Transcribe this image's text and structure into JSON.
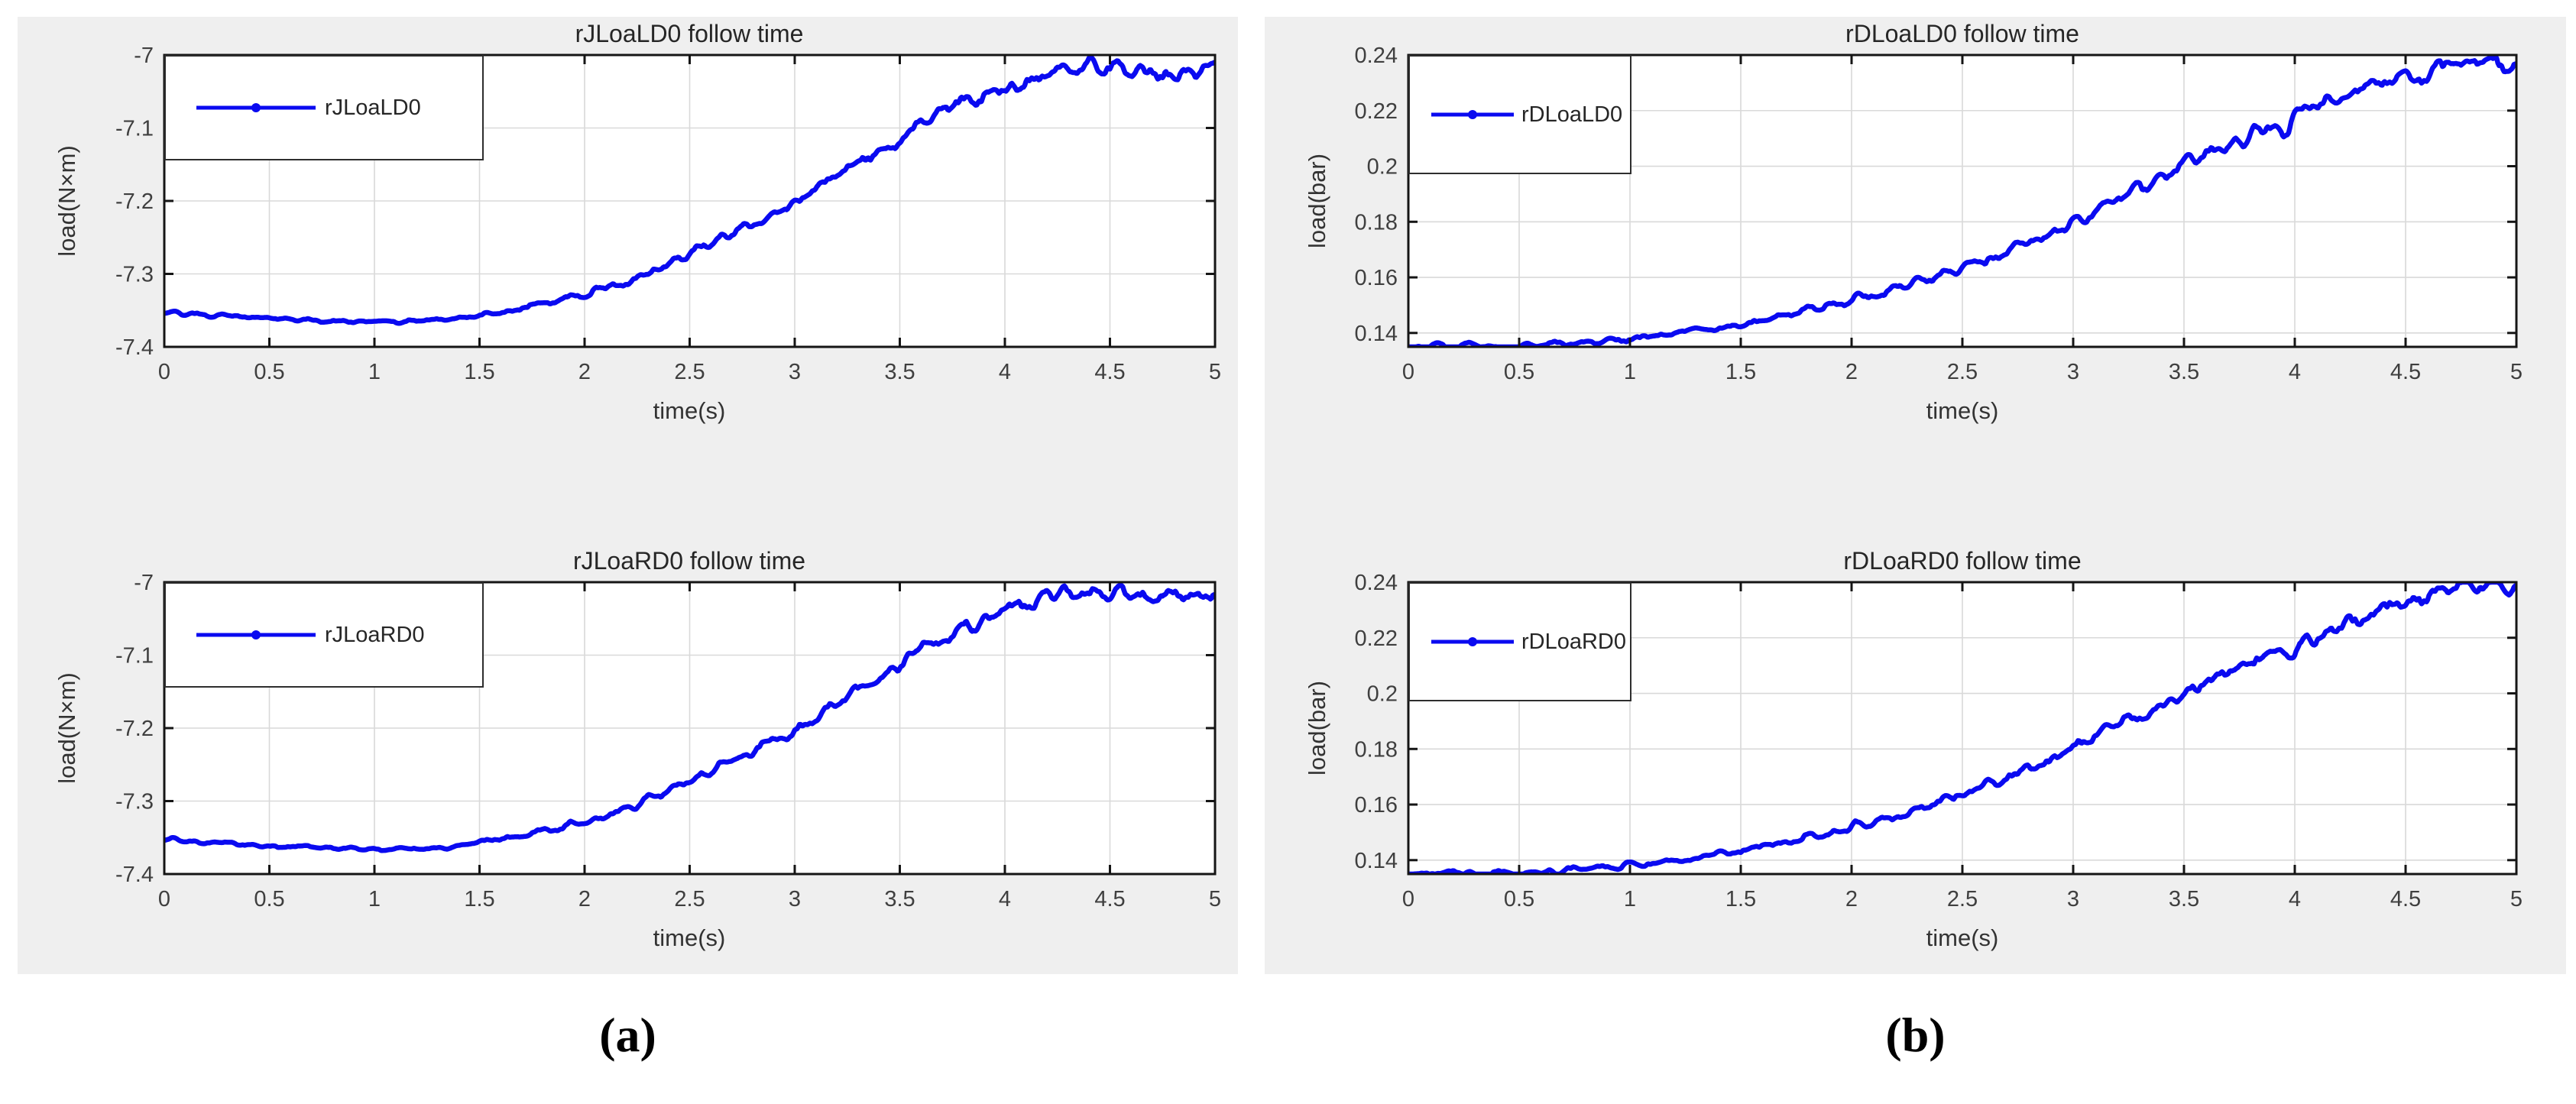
{
  "captions": {
    "a": "(a)",
    "b": "(b)"
  },
  "colors": {
    "line": "#0a0af0",
    "panel_bg": "#efefef",
    "plot_bg": "#ffffff",
    "grid": "#d9d9d9",
    "axis": "#151515",
    "tick_label": "#3f3f3f",
    "title": "#262626"
  },
  "chart_data": [
    {
      "type": "line",
      "title": "rJLoaLD0 follow time",
      "xlabel": "time(s)",
      "ylabel": "load(N×m)",
      "legend": "rJLoaLD0",
      "line_color": "#0a0af0",
      "xlim": [
        0,
        5
      ],
      "ylim": [
        -7.4,
        -7.0
      ],
      "xtick_values": [
        0,
        0.5,
        1,
        1.5,
        2,
        2.5,
        3,
        3.5,
        4,
        4.5,
        5
      ],
      "xtick_labels": [
        "0",
        "0.5",
        "1",
        "1.5",
        "2",
        "2.5",
        "3",
        "3.5",
        "4",
        "4.5",
        "5"
      ],
      "ytick_values": [
        -7.4,
        -7.3,
        -7.2,
        -7.1,
        -7.0
      ],
      "ytick_labels": [
        "-7.4",
        "-7.3",
        "-7.2",
        "-7.1",
        "-7"
      ],
      "grid": true,
      "legend_position": "top-left",
      "x": [
        0,
        0.25,
        0.5,
        0.75,
        1,
        1.25,
        1.5,
        1.75,
        2,
        2.25,
        2.5,
        2.75,
        3,
        3.25,
        3.5,
        3.75,
        4,
        4.25,
        4.5,
        4.75,
        5
      ],
      "y": [
        -7.352,
        -7.357,
        -7.361,
        -7.364,
        -7.366,
        -7.365,
        -7.358,
        -7.345,
        -7.327,
        -7.305,
        -7.272,
        -7.238,
        -7.202,
        -7.158,
        -7.112,
        -7.072,
        -7.044,
        -7.018,
        -7.016,
        -7.022,
        -7.019
      ],
      "noise_amplitude": {
        "t": [
          0,
          1.3,
          2.2,
          3.2,
          4,
          5
        ],
        "a": [
          0.002,
          0.002,
          0.005,
          0.0075,
          0.011,
          0.011
        ]
      },
      "ripple_period": 0.125
    },
    {
      "type": "line",
      "title": "rJLoaRD0 follow time",
      "xlabel": "time(s)",
      "ylabel": "load(N×m)",
      "legend": "rJLoaRD0",
      "line_color": "#0a0af0",
      "xlim": [
        0,
        5
      ],
      "ylim": [
        -7.4,
        -7.0
      ],
      "xtick_values": [
        0,
        0.5,
        1,
        1.5,
        2,
        2.5,
        3,
        3.5,
        4,
        4.5,
        5
      ],
      "xtick_labels": [
        "0",
        "0.5",
        "1",
        "1.5",
        "2",
        "2.5",
        "3",
        "3.5",
        "4",
        "4.5",
        "5"
      ],
      "ytick_values": [
        -7.4,
        -7.3,
        -7.2,
        -7.1,
        -7.0
      ],
      "ytick_labels": [
        "-7.4",
        "-7.3",
        "-7.2",
        "-7.1",
        "-7"
      ],
      "grid": true,
      "legend_position": "top-left",
      "x": [
        0,
        0.25,
        0.5,
        0.75,
        1,
        1.25,
        1.5,
        1.75,
        2,
        2.25,
        2.5,
        2.75,
        3,
        3.25,
        3.5,
        3.75,
        4,
        4.25,
        4.5,
        4.75,
        5
      ],
      "y": [
        -7.352,
        -7.357,
        -7.361,
        -7.364,
        -7.366,
        -7.365,
        -7.358,
        -7.345,
        -7.327,
        -7.305,
        -7.272,
        -7.238,
        -7.202,
        -7.158,
        -7.112,
        -7.072,
        -7.044,
        -7.018,
        -7.016,
        -7.022,
        -7.019
      ],
      "noise_amplitude": {
        "t": [
          0,
          1.3,
          2.2,
          3.2,
          4,
          5
        ],
        "a": [
          0.002,
          0.002,
          0.005,
          0.0075,
          0.011,
          0.011
        ]
      },
      "ripple_period": 0.125
    },
    {
      "type": "line",
      "title": "rDLoaLD0 follow time",
      "xlabel": "time(s)",
      "ylabel": "load(bar)",
      "legend": "rDLoaLD0",
      "line_color": "#0a0af0",
      "xlim": [
        0,
        5
      ],
      "ylim": [
        0.135,
        0.24
      ],
      "xtick_values": [
        0,
        0.5,
        1,
        1.5,
        2,
        2.5,
        3,
        3.5,
        4,
        4.5,
        5
      ],
      "xtick_labels": [
        "0",
        "0.5",
        "1",
        "1.5",
        "2",
        "2.5",
        "3",
        "3.5",
        "4",
        "4.5",
        "5"
      ],
      "ytick_values": [
        0.14,
        0.16,
        0.18,
        0.2,
        0.22,
        0.24
      ],
      "ytick_labels": [
        "0.14",
        "0.16",
        "0.18",
        "0.2",
        "0.22",
        "0.24"
      ],
      "grid": true,
      "legend_position": "top-left",
      "x": [
        0,
        0.25,
        0.5,
        0.75,
        1,
        1.25,
        1.5,
        1.75,
        2,
        2.25,
        2.5,
        2.75,
        3,
        3.25,
        3.5,
        3.75,
        4,
        4.25,
        4.5,
        4.75,
        5
      ],
      "y": [
        0.135,
        0.1355,
        0.135,
        0.1365,
        0.138,
        0.1405,
        0.1435,
        0.1475,
        0.152,
        0.157,
        0.1635,
        0.1715,
        0.18,
        0.1905,
        0.2,
        0.209,
        0.2165,
        0.2265,
        0.2325,
        0.2375,
        0.237
      ],
      "noise_amplitude": {
        "t": [
          0,
          1.3,
          2.2,
          3.2,
          4,
          5
        ],
        "a": [
          0.001,
          0.001,
          0.0016,
          0.0022,
          0.0032,
          0.0032
        ]
      },
      "ripple_period": 0.125
    },
    {
      "type": "line",
      "title": "rDLoaRD0 follow time",
      "xlabel": "time(s)",
      "ylabel": "load(bar)",
      "legend": "rDLoaRD0",
      "line_color": "#0a0af0",
      "xlim": [
        0,
        5
      ],
      "ylim": [
        0.135,
        0.24
      ],
      "xtick_values": [
        0,
        0.5,
        1,
        1.5,
        2,
        2.5,
        3,
        3.5,
        4,
        4.5,
        5
      ],
      "xtick_labels": [
        "0",
        "0.5",
        "1",
        "1.5",
        "2",
        "2.5",
        "3",
        "3.5",
        "4",
        "4.5",
        "5"
      ],
      "ytick_values": [
        0.14,
        0.16,
        0.18,
        0.2,
        0.22,
        0.24
      ],
      "ytick_labels": [
        "0.14",
        "0.16",
        "0.18",
        "0.2",
        "0.22",
        "0.24"
      ],
      "grid": true,
      "legend_position": "top-left",
      "x": [
        0,
        0.25,
        0.5,
        0.75,
        1,
        1.25,
        1.5,
        1.75,
        2,
        2.25,
        2.5,
        2.75,
        3,
        3.25,
        3.5,
        3.75,
        4,
        4.25,
        4.5,
        4.75,
        5
      ],
      "y": [
        0.135,
        0.1355,
        0.135,
        0.1365,
        0.138,
        0.1405,
        0.1435,
        0.1475,
        0.152,
        0.157,
        0.1635,
        0.1715,
        0.18,
        0.1905,
        0.2,
        0.209,
        0.2165,
        0.2265,
        0.2325,
        0.2375,
        0.237
      ],
      "noise_amplitude": {
        "t": [
          0,
          1.3,
          2.2,
          3.2,
          4,
          5
        ],
        "a": [
          0.001,
          0.001,
          0.0016,
          0.0022,
          0.0032,
          0.0032
        ]
      },
      "ripple_period": 0.125
    }
  ]
}
